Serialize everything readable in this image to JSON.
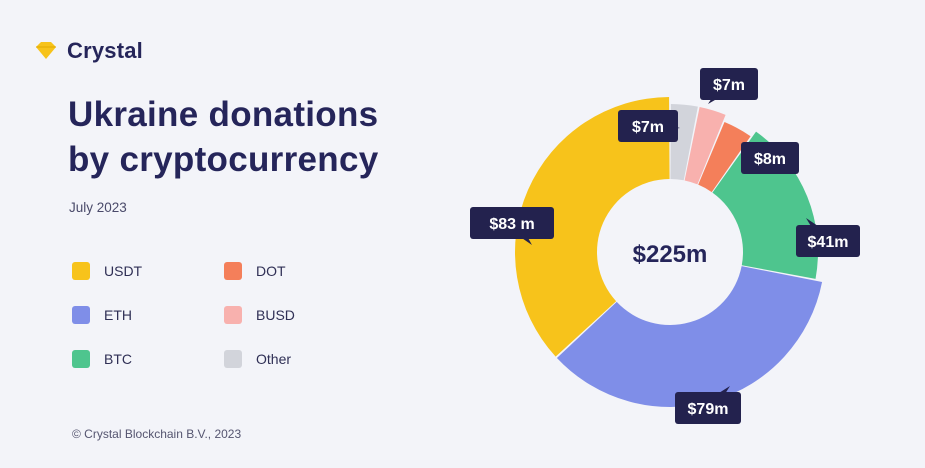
{
  "brand": {
    "name": "Crystal",
    "logo_color": "#f7c31b",
    "logo_icon": "gem-icon"
  },
  "title_lines": [
    "Ukraine donations",
    "by cryptocurrency"
  ],
  "subtitle": "July 2023",
  "footer": "© Crystal Blockchain B.V., 2023",
  "chart_data": {
    "type": "pie",
    "variant": "donut",
    "total_label": "$225m",
    "legend_placement": "left",
    "slices": [
      {
        "name": "USDT",
        "value": 83,
        "label": "$83 m",
        "color": "#f7c31b"
      },
      {
        "name": "ETH",
        "value": 79,
        "label": "$79m",
        "color": "#7f8ee8"
      },
      {
        "name": "BTC",
        "value": 41,
        "label": "$41m",
        "color": "#4ec58e"
      },
      {
        "name": "DOT",
        "value": 8,
        "label": "$8m",
        "color": "#f47f5a"
      },
      {
        "name": "BUSD",
        "value": 7,
        "label": "$7m",
        "color": "#f8b1ae"
      },
      {
        "name": "Other",
        "value": 7,
        "label": "$7m",
        "color": "#d2d4db"
      }
    ]
  }
}
